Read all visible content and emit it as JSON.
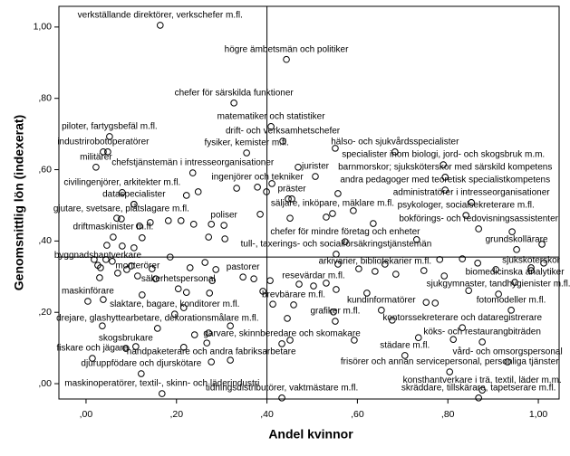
{
  "chart_data": {
    "type": "scatter",
    "xlabel": "Andel kvinnor",
    "ylabel": "Genomsnittlig lön (indexerat)",
    "xlim": [
      -0.06,
      1.046
    ],
    "ylim": [
      -0.043,
      1.058
    ],
    "xticks": [
      {
        "value": 0,
        "label": ",00"
      },
      {
        "value": 0.2,
        "label": ",20"
      },
      {
        "value": 0.4,
        "label": ",40"
      },
      {
        "value": 0.6,
        "label": ",60"
      },
      {
        "value": 0.8,
        "label": ",80"
      },
      {
        "value": 1,
        "label": "1,00"
      }
    ],
    "yticks": [
      {
        "value": 0,
        "label": ",00"
      },
      {
        "value": 0.2,
        "label": ",20"
      },
      {
        "value": 0.4,
        "label": ",40"
      },
      {
        "value": 0.6,
        "label": ",60"
      },
      {
        "value": 0.8,
        "label": ",80"
      },
      {
        "value": 1,
        "label": "1,00"
      }
    ],
    "xref": 0.4,
    "yref": 0.355,
    "series": [
      {
        "color": "#000000",
        "x": [
          0.164,
          0.443,
          0.327,
          0.409,
          0.435,
          0.052,
          0.038,
          0.683,
          0.355,
          0.79,
          0.022,
          0.236,
          0.507,
          0.794,
          0.379,
          0.794,
          0.08,
          0.455,
          0.852,
          0.106,
          0.545,
          0.84,
          0.078,
          0.305,
          0.868,
          0.06,
          0.573,
          0.952,
          0.553,
          0.026,
          0.347,
          0.984,
          0.114,
          0.204,
          0.639,
          0.948,
          0.503,
          0.912,
          0.004,
          0.459,
          0.196,
          0.653,
          0.94,
          0.551,
          0.158,
          0.832,
          0.088,
          0.433,
          0.876,
          0.014,
          0.277,
          0.705,
          0.122,
          0.932,
          0.804,
          0.168,
          0.876,
          0.433,
          0.868,
          0.048,
          0.106,
          0.222,
          0.248,
          0.333,
          0.399,
          0.411,
          0.447,
          0.551,
          0.469,
          0.557,
          0.531,
          0.591,
          0.635,
          0.068,
          0.118,
          0.142,
          0.182,
          0.21,
          0.238,
          0.277,
          0.385,
          0.451,
          0.271,
          0.307,
          0.046,
          0.08,
          0.106,
          0.124,
          0.018,
          0.044,
          0.032,
          0.058,
          0.07,
          0.1,
          0.146,
          0.186,
          0.23,
          0.263,
          0.287,
          0.03,
          0.09,
          0.154,
          0.371,
          0.407,
          0.471,
          0.531,
          0.557,
          0.553,
          0.603,
          0.661,
          0.685,
          0.747,
          0.792,
          0.782,
          0.832,
          0.866,
          0.906,
          0.984,
          1.012,
          1.008,
          0.942,
          0.731,
          0.846,
          0.752,
          0.621,
          0.413,
          0.273,
          0.222,
          0.216,
          0.124,
          0.038,
          0.036,
          0.24,
          0.11,
          0.216,
          0.319,
          0.451,
          0.445,
          0.547,
          0.593,
          0.735,
          0.812,
          0.677,
          0.772,
          0.319,
          0.267,
          0.271,
          0.391,
          0.279
        ],
        "values": [
          1.005,
          0.909,
          0.787,
          0.721,
          0.68,
          0.693,
          0.65,
          0.65,
          0.647,
          0.614,
          0.607,
          0.591,
          0.581,
          0.579,
          0.551,
          0.543,
          0.536,
          0.518,
          0.508,
          0.503,
          0.477,
          0.472,
          0.462,
          0.444,
          0.434,
          0.411,
          0.398,
          0.376,
          0.363,
          0.332,
          0.299,
          0.317,
          0.302,
          0.266,
          0.315,
          0.284,
          0.274,
          0.251,
          0.231,
          0.221,
          0.195,
          0.206,
          0.206,
          0.175,
          0.155,
          0.157,
          0.099,
          0.112,
          0.117,
          0.071,
          0.061,
          0.079,
          0.028,
          0.061,
          0.033,
          -0.028,
          -0.018,
          -0.04,
          -0.04,
          0.65,
          0.503,
          0.528,
          0.538,
          0.548,
          0.538,
          0.561,
          0.518,
          0.66,
          0.607,
          0.533,
          0.467,
          0.485,
          0.449,
          0.464,
          0.442,
          0.452,
          0.457,
          0.457,
          0.447,
          0.447,
          0.475,
          0.464,
          0.411,
          0.406,
          0.388,
          0.386,
          0.381,
          0.409,
          0.348,
          0.348,
          0.325,
          0.343,
          0.31,
          0.33,
          0.322,
          0.355,
          0.325,
          0.34,
          0.32,
          0.297,
          0.32,
          0.294,
          0.294,
          0.289,
          0.279,
          0.282,
          0.335,
          0.264,
          0.322,
          0.335,
          0.307,
          0.317,
          0.302,
          0.348,
          0.35,
          0.338,
          0.32,
          0.325,
          0.338,
          0.391,
          0.426,
          0.404,
          0.261,
          0.228,
          0.254,
          0.223,
          0.254,
          0.256,
          0.213,
          0.249,
          0.236,
          0.162,
          0.137,
          0.104,
          0.102,
          0.066,
          0.122,
          0.183,
          0.201,
          0.122,
          0.129,
          0.124,
          0.178,
          0.226,
          0.162,
          0.114,
          0.142,
          0.259,
          0.289
        ],
        "labels": [
          "verkställande direktörer, verkschefer m.fl.",
          "högre ämbetsmän och politiker",
          "chefer för särskilda funktioner",
          "matematiker och statistiker",
          "drift- och verksamhetschefer",
          "piloter, fartygsbefäl m.fl.",
          "industrirobotoperatörer",
          "hälso- och sjukvårdsspecialister",
          "fysiker, kemister m.fl.",
          "specialister inom biologi, jord- och skogsbruk m.m.",
          "militärer",
          "chefstjänstemän i intresseorganisationer",
          "jurister",
          "barnmorskor; sjuksköterskor med särskild kompetens",
          "ingenjörer och tekniker",
          "andra pedagoger med teoretisk specialistkompetens",
          "civilingenjörer, arkitekter m.fl.",
          "präster",
          "administratörer i intresseorganisationer",
          "dataspecialister",
          "säljare, inköpare, mäklare m.fl.",
          "psykologer, socialsekreterare m.fl.",
          "gjutare, svetsare, plåtslagare m.fl.",
          "poliser",
          "bokförings- och redovisningsassistenter",
          "driftmaskinister m.fl.",
          "chefer för mindre företag och enheter",
          "grundskollärare",
          "tull-, taxerings- och socialförsäkringstjänstemän",
          "byggnadshantverkare",
          "pastorer",
          "sjuksköterskor",
          "monterörer",
          "säkerhetspersonal",
          "arkivarier, bibliotekarier m.fl.",
          "biomedicinska analytiker",
          "resevärdar m.fl.",
          "sjukgymnaster, tandhygienister m.fl.",
          "maskinförare",
          "brevbärare m.fl.",
          "slaktare, bagare, konditorer m.fl.",
          "kundinformatörer",
          "fotomodeller m.fl.",
          "grafiker m.fl.",
          "drejare, glashyttearbetare, dekorationsmålare m.fl.",
          "kontorssekreterare och dataregistrerare",
          "skogsbrukare",
          "garvare, skinnberedare och skomakare",
          "köks- och restaurangbiträden",
          "fiskare och jägare",
          "handpaketerare och andra fabriksarbetare",
          "städare m.fl.",
          "djuruppfödare och djurskötare",
          "vård- och omsorgspersonal",
          "frisörer och annan servicepersonal, personliga tjänster",
          "maskinoperatörer, textil-, skinn- och läderindustri",
          "konsthantverkare i trä, textil, läder m.m.",
          "tidningsdistributörer, vaktmästare m.fl.",
          "skräddare, tillskärare, tapetserare m.fl.",
          null,
          null,
          null,
          null,
          null,
          null,
          null,
          null,
          null,
          null,
          null,
          null,
          null,
          null,
          null,
          null,
          null,
          null,
          null,
          null,
          null,
          null,
          null,
          null,
          null,
          null,
          null,
          null,
          null,
          null,
          null,
          null,
          null,
          null,
          null,
          null,
          null,
          null,
          null,
          null,
          null,
          null,
          null,
          null,
          null,
          null,
          null,
          null,
          null,
          null,
          null,
          null,
          null,
          null,
          null,
          null,
          null,
          null,
          null,
          null,
          null,
          null,
          null,
          null,
          null,
          null,
          null,
          null,
          null,
          null,
          null,
          null,
          null,
          null,
          null,
          null,
          null,
          null,
          null,
          null,
          null,
          null,
          null,
          null,
          null,
          null,
          null,
          null,
          null,
          null
        ]
      }
    ]
  }
}
